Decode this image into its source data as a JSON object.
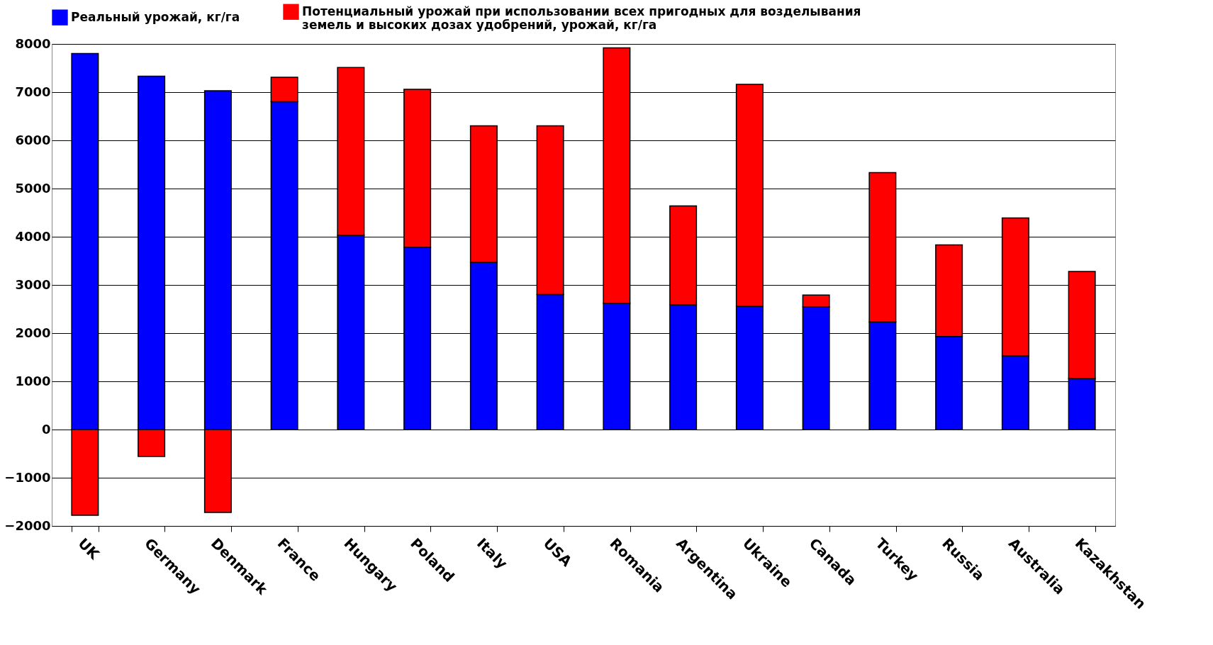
{
  "chart_data": {
    "type": "bar",
    "stacked": true,
    "categories": [
      "UK",
      "Germany",
      "Denmark",
      "France",
      "Hungary",
      "Poland",
      "Italy",
      "USA",
      "Romania",
      "Argentina",
      "Ukraine",
      "Canada",
      "Turkey",
      "Russia",
      "Australia",
      "Kazakhstan"
    ],
    "series": [
      {
        "name": "Реальный урожай, кг/га",
        "color": "#0000ff",
        "values": [
          7800,
          7330,
          7030,
          6800,
          4030,
          3780,
          3470,
          2800,
          2620,
          2590,
          2560,
          2540,
          2230,
          1930,
          1530,
          1060
        ]
      },
      {
        "name": "Потенциальный урожай при использовании всех пригодных для возделывания земель и высоких дозах удобрений, урожай, кг/га",
        "color": "#ff0000",
        "values": [
          -1780,
          -560,
          -1720,
          510,
          3480,
          3280,
          2830,
          3500,
          5300,
          2050,
          4600,
          250,
          3100,
          1900,
          2860,
          2220
        ]
      }
    ],
    "ylim": [
      -2000,
      8000
    ],
    "yticks": [
      -2000,
      -1000,
      0,
      1000,
      2000,
      3000,
      4000,
      5000,
      6000,
      7000,
      8000
    ],
    "grid": "y",
    "legend": "top"
  }
}
